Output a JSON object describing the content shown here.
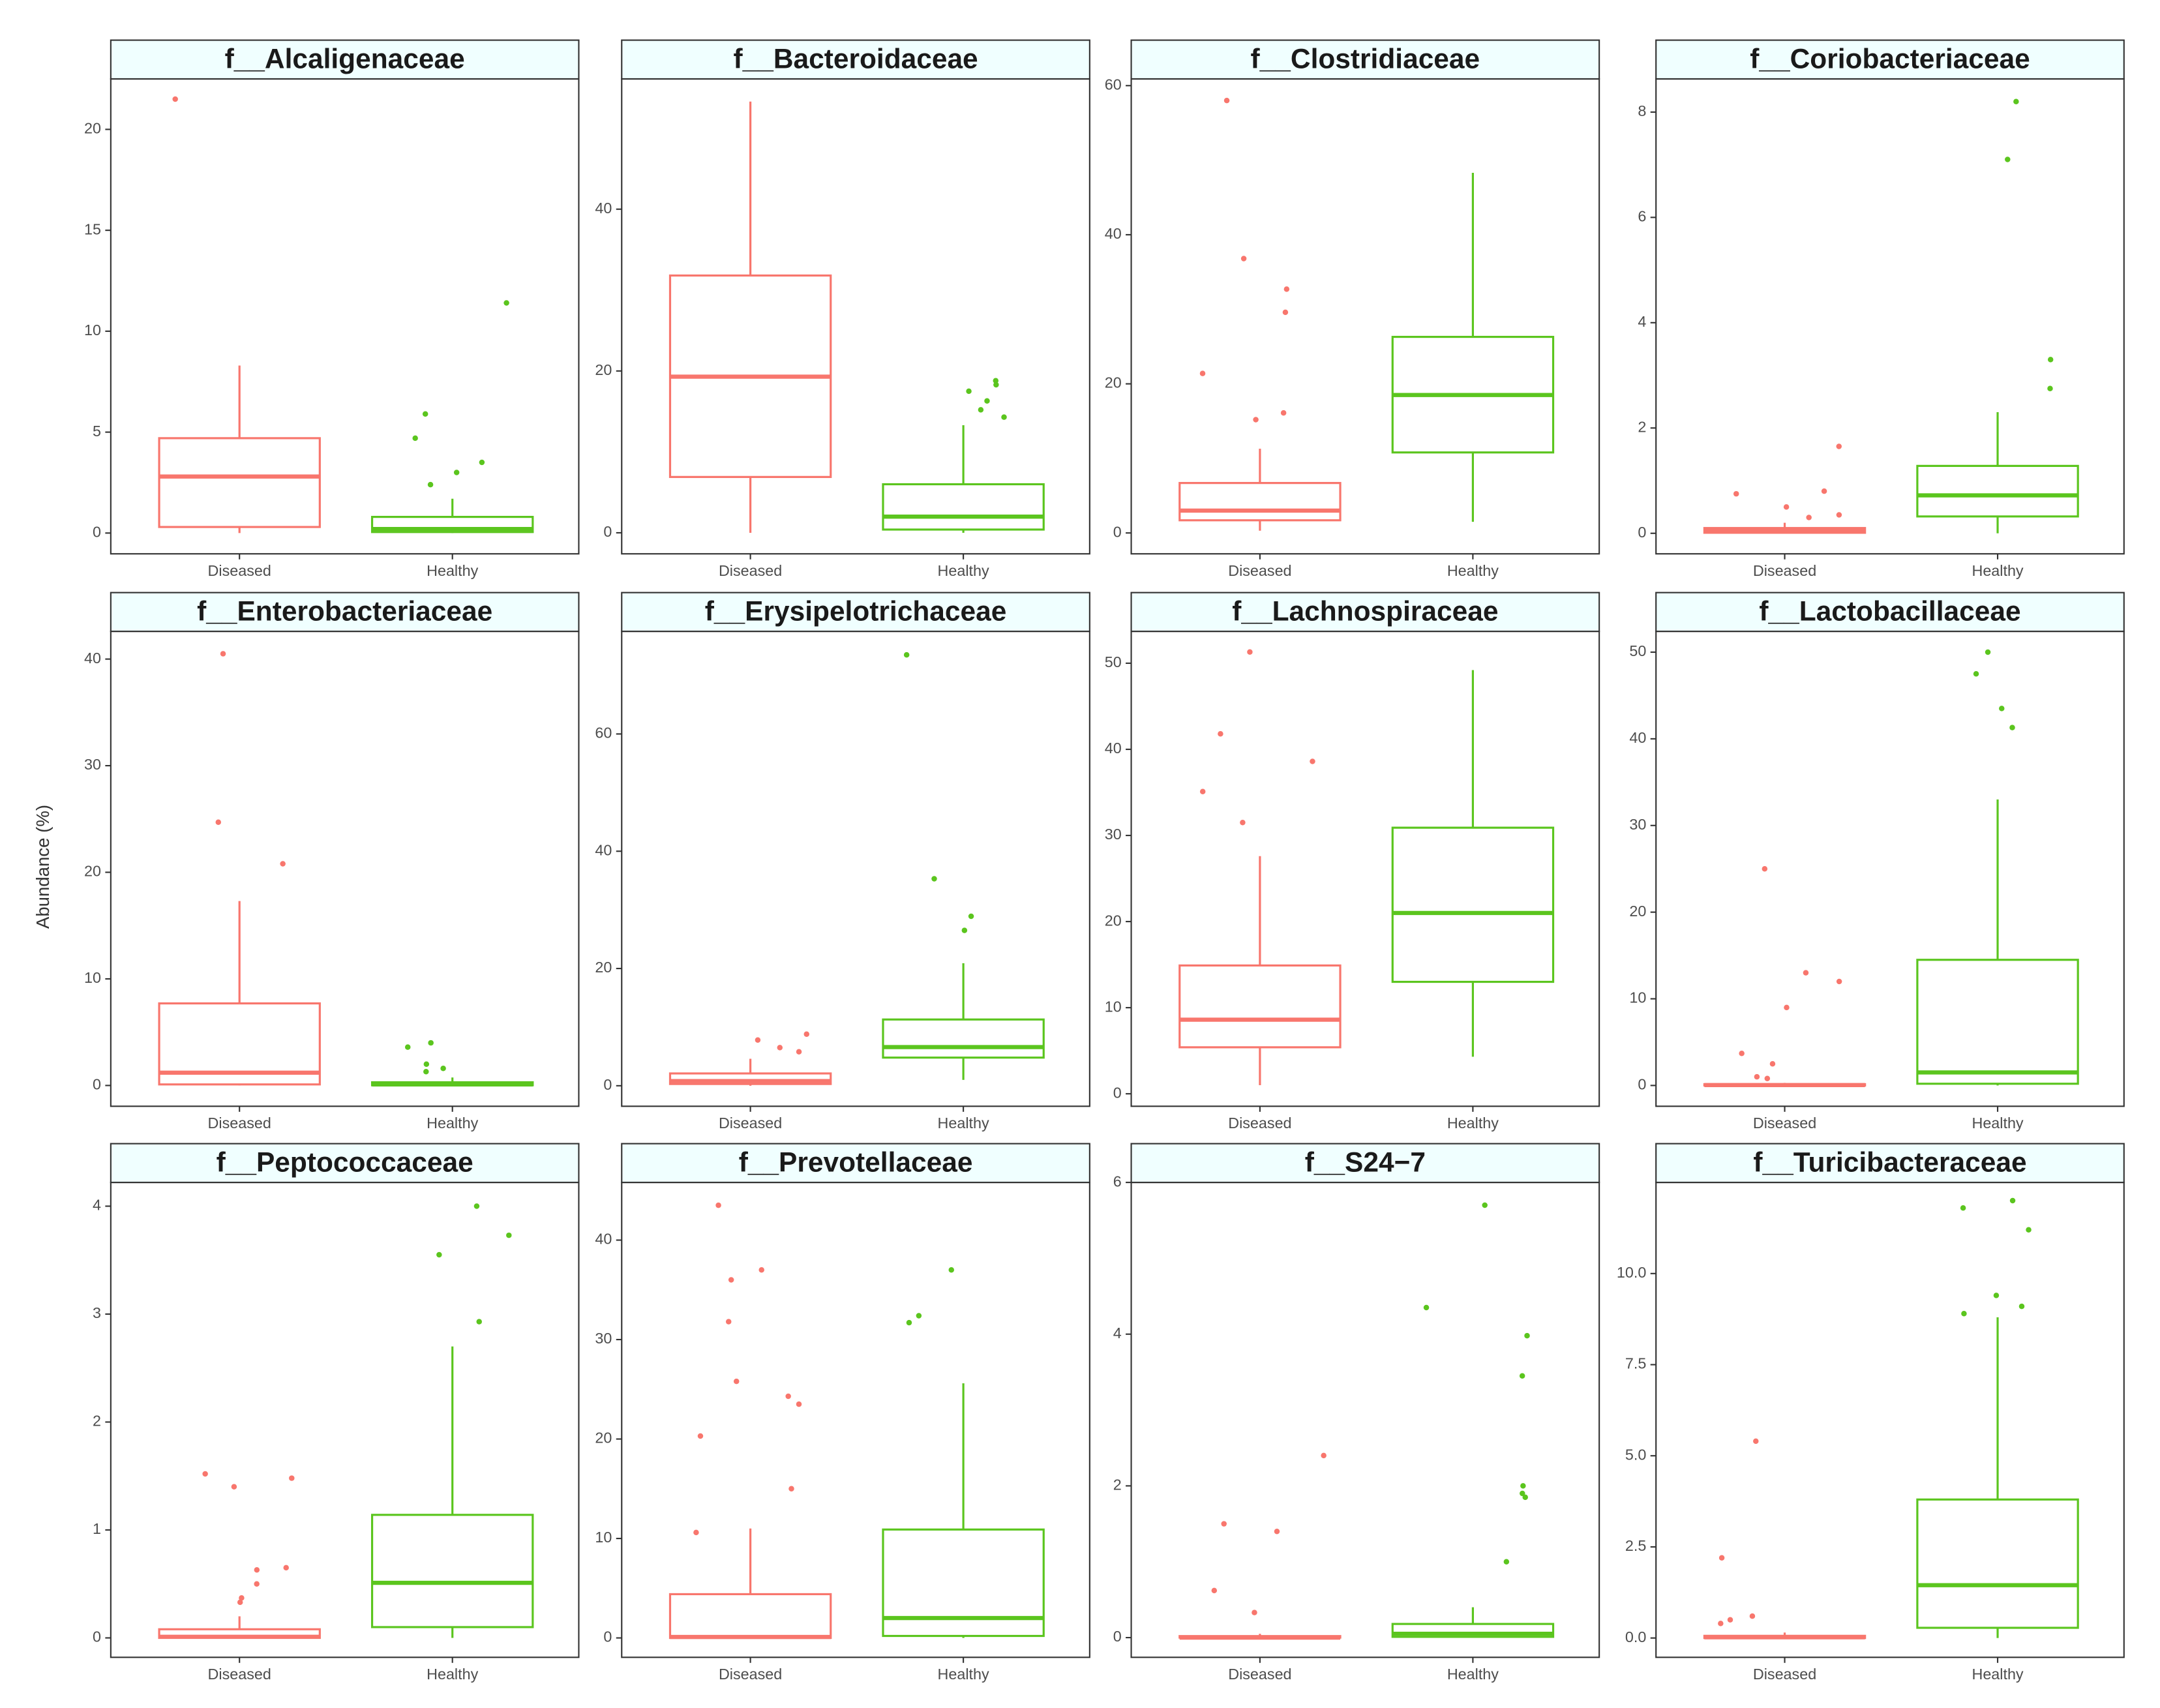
{
  "axis_title": "Abundance (%)",
  "chart_data": [
    {
      "type": "box",
      "title": "f__Alcaligenaceae",
      "categories": [
        "Diseased",
        "Healthy"
      ],
      "ylim": [
        -1.03,
        22.5
      ],
      "yticks": [
        0,
        5,
        10,
        15,
        20
      ],
      "boxes": [
        {
          "color": "#F8766D",
          "whislo": 0,
          "q1": 0.3,
          "median": 2.8,
          "q3": 4.7,
          "whishi": 8.3,
          "outliers": [
            21.5
          ]
        },
        {
          "color": "#5BC51E",
          "whislo": 0,
          "q1": 0.05,
          "median": 0.2,
          "q3": 0.8,
          "whishi": 1.7,
          "outliers": [
            11.4,
            5.9,
            4.7,
            3.5,
            3.0,
            2.4
          ]
        }
      ]
    },
    {
      "type": "box",
      "title": "f__Bacteroidaceae",
      "categories": [
        "Diseased",
        "Healthy"
      ],
      "ylim": [
        -2.6,
        56.1
      ],
      "yticks": [
        0,
        20,
        40
      ],
      "boxes": [
        {
          "color": "#F8766D",
          "whislo": 0,
          "q1": 6.9,
          "median": 19.3,
          "q3": 31.8,
          "whishi": 53.3,
          "outliers": []
        },
        {
          "color": "#5BC51E",
          "whislo": 0,
          "q1": 0.4,
          "median": 2,
          "q3": 6,
          "whishi": 13.3,
          "outliers": [
            18.8,
            18.3,
            17.5,
            16.3,
            15.2,
            14.3
          ]
        }
      ]
    },
    {
      "type": "box",
      "title": "f__Clostridiaceae",
      "categories": [
        "Diseased",
        "Healthy"
      ],
      "ylim": [
        -2.8,
        60.9
      ],
      "yticks": [
        0,
        20,
        40,
        60
      ],
      "boxes": [
        {
          "color": "#F8766D",
          "whislo": 0.3,
          "q1": 1.7,
          "median": 3,
          "q3": 6.7,
          "whishi": 11.3,
          "outliers": [
            58,
            36.8,
            32.7,
            29.6,
            21.4,
            16.1,
            15.2
          ]
        },
        {
          "color": "#5BC51E",
          "whislo": 1.5,
          "q1": 10.8,
          "median": 18.5,
          "q3": 26.3,
          "whishi": 48.3,
          "outliers": []
        }
      ]
    },
    {
      "type": "box",
      "title": "f__Coriobacteriaceae",
      "categories": [
        "Diseased",
        "Healthy"
      ],
      "ylim": [
        -0.39,
        8.63
      ],
      "yticks": [
        0,
        2,
        4,
        6,
        8
      ],
      "boxes": [
        {
          "color": "#F8766D",
          "whislo": 0,
          "q1": 0.01,
          "median": 0.05,
          "q3": 0.1,
          "whishi": 0.2,
          "outliers": [
            1.65,
            0.8,
            0.75,
            0.5,
            0.35,
            0.3
          ]
        },
        {
          "color": "#5BC51E",
          "whislo": 0,
          "q1": 0.32,
          "median": 0.72,
          "q3": 1.28,
          "whishi": 2.3,
          "outliers": [
            8.2,
            7.1,
            3.3,
            2.75
          ]
        }
      ]
    },
    {
      "type": "box",
      "title": "f__Enterobacteriaceae",
      "categories": [
        "Diseased",
        "Healthy"
      ],
      "ylim": [
        -1.95,
        42.6
      ],
      "yticks": [
        0,
        10,
        20,
        30,
        40
      ],
      "boxes": [
        {
          "color": "#F8766D",
          "whislo": 0,
          "q1": 0.1,
          "median": 1.2,
          "q3": 7.7,
          "whishi": 17.3,
          "outliers": [
            40.5,
            24.7,
            20.8
          ]
        },
        {
          "color": "#5BC51E",
          "whislo": 0,
          "q1": 0.02,
          "median": 0.1,
          "q3": 0.3,
          "whishi": 0.75,
          "outliers": [
            4.0,
            3.6,
            2.0,
            1.6,
            1.3
          ]
        }
      ]
    },
    {
      "type": "box",
      "title": "f__Erysipelotrichaceae",
      "categories": [
        "Diseased",
        "Healthy"
      ],
      "ylim": [
        -3.5,
        77.5
      ],
      "yticks": [
        0,
        20,
        40,
        60
      ],
      "boxes": [
        {
          "color": "#F8766D",
          "whislo": 0,
          "q1": 0.3,
          "median": 0.8,
          "q3": 2.1,
          "whishi": 4.6,
          "outliers": [
            8.8,
            7.8,
            6.5,
            5.8
          ]
        },
        {
          "color": "#5BC51E",
          "whislo": 1,
          "q1": 4.8,
          "median": 6.6,
          "q3": 11.3,
          "whishi": 20.9,
          "outliers": [
            73.5,
            35.3,
            28.9,
            26.5
          ]
        }
      ]
    },
    {
      "type": "box",
      "title": "f__Lachnospiraceae",
      "categories": [
        "Diseased",
        "Healthy"
      ],
      "ylim": [
        -1.45,
        53.7
      ],
      "yticks": [
        0,
        10,
        20,
        30,
        40,
        50
      ],
      "boxes": [
        {
          "color": "#F8766D",
          "whislo": 1,
          "q1": 5.4,
          "median": 8.6,
          "q3": 14.9,
          "whishi": 27.6,
          "outliers": [
            51.3,
            41.8,
            38.6,
            35.1,
            31.5
          ]
        },
        {
          "color": "#5BC51E",
          "whislo": 4.3,
          "q1": 13,
          "median": 21,
          "q3": 30.9,
          "whishi": 49.2,
          "outliers": []
        }
      ]
    },
    {
      "type": "box",
      "title": "f__Lactobacillaceae",
      "categories": [
        "Diseased",
        "Healthy"
      ],
      "ylim": [
        -2.4,
        52.4
      ],
      "yticks": [
        0,
        10,
        20,
        30,
        40,
        50
      ],
      "boxes": [
        {
          "color": "#F8766D",
          "whislo": 0,
          "q1": 0,
          "median": 0.05,
          "q3": 0.15,
          "whishi": 0.3,
          "outliers": [
            25,
            13,
            12,
            9,
            3.7,
            2.5,
            1,
            0.8
          ]
        },
        {
          "color": "#5BC51E",
          "whislo": 0,
          "q1": 0.2,
          "median": 1.5,
          "q3": 14.5,
          "whishi": 33,
          "outliers": [
            50,
            47.5,
            43.5,
            41.3
          ]
        }
      ]
    },
    {
      "type": "box",
      "title": "f__Peptococcaceae",
      "categories": [
        "Diseased",
        "Healthy"
      ],
      "ylim": [
        -0.18,
        4.22
      ],
      "yticks": [
        0,
        1,
        2,
        3,
        4
      ],
      "boxes": [
        {
          "color": "#F8766D",
          "whislo": 0,
          "q1": 0,
          "median": 0.01,
          "q3": 0.08,
          "whishi": 0.2,
          "outliers": [
            1.52,
            1.48,
            1.4,
            0.65,
            0.63,
            0.5,
            0.37,
            0.33
          ]
        },
        {
          "color": "#5BC51E",
          "whislo": 0,
          "q1": 0.1,
          "median": 0.51,
          "q3": 1.14,
          "whishi": 2.7,
          "outliers": [
            4.0,
            3.73,
            3.55,
            2.93
          ]
        }
      ]
    },
    {
      "type": "box",
      "title": "f__Prevotellaceae",
      "categories": [
        "Diseased",
        "Healthy"
      ],
      "ylim": [
        -1.95,
        45.8
      ],
      "yticks": [
        0,
        10,
        20,
        30,
        40
      ],
      "boxes": [
        {
          "color": "#F8766D",
          "whislo": 0,
          "q1": 0,
          "median": 0.1,
          "q3": 4.4,
          "whishi": 11,
          "outliers": [
            43.5,
            37,
            36,
            31.8,
            25.8,
            24.3,
            23.5,
            20.3,
            15,
            10.6
          ]
        },
        {
          "color": "#5BC51E",
          "whislo": 0,
          "q1": 0.2,
          "median": 2,
          "q3": 10.9,
          "whishi": 25.6,
          "outliers": [
            37,
            32.4,
            31.7
          ]
        }
      ]
    },
    {
      "type": "box",
      "title": "f__S24−7",
      "categories": [
        "Diseased",
        "Healthy"
      ],
      "ylim": [
        -0.26,
        6.0
      ],
      "yticks": [
        0,
        2,
        4,
        6
      ],
      "boxes": [
        {
          "color": "#F8766D",
          "whislo": 0,
          "q1": 0,
          "median": 0,
          "q3": 0.02,
          "whishi": 0.05,
          "outliers": [
            2.4,
            1.5,
            1.4,
            0.62,
            0.33
          ]
        },
        {
          "color": "#5BC51E",
          "whislo": 0,
          "q1": 0.01,
          "median": 0.05,
          "q3": 0.18,
          "whishi": 0.4,
          "outliers": [
            5.7,
            4.35,
            3.98,
            3.45,
            2.0,
            1.9,
            1.85,
            1.0
          ]
        }
      ]
    },
    {
      "type": "box",
      "title": "f__Turicibacteraceae",
      "categories": [
        "Diseased",
        "Healthy"
      ],
      "ylim": [
        -0.53,
        12.5
      ],
      "yticks": [
        {
          "value": 0,
          "label": "0.0"
        },
        2.5,
        {
          "value": 5,
          "label": "5.0"
        },
        7.5,
        {
          "value": 10,
          "label": "10.0"
        }
      ],
      "boxes": [
        {
          "color": "#F8766D",
          "whislo": 0,
          "q1": 0,
          "median": 0.02,
          "q3": 0.06,
          "whishi": 0.15,
          "outliers": [
            5.4,
            2.2,
            0.6,
            0.5,
            0.4
          ]
        },
        {
          "color": "#5BC51E",
          "whislo": 0,
          "q1": 0.28,
          "median": 1.45,
          "q3": 3.8,
          "whishi": 8.8,
          "outliers": [
            12,
            11.8,
            11.2,
            9.4,
            9.1,
            8.9
          ]
        }
      ]
    }
  ]
}
